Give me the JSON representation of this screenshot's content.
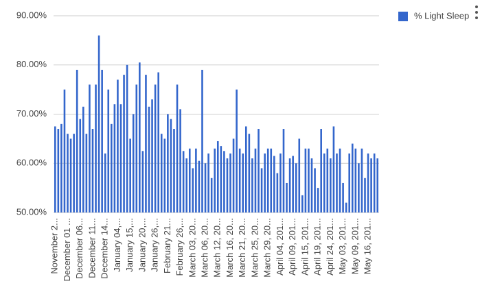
{
  "chart_data": {
    "type": "bar",
    "categories": [
      "November 2...",
      null,
      null,
      null,
      "December 01 ...",
      null,
      null,
      null,
      "December 06...",
      null,
      null,
      null,
      "December 11...",
      null,
      null,
      null,
      "December 14...",
      null,
      null,
      null,
      "January 04,...",
      null,
      null,
      null,
      "January 15,...",
      null,
      null,
      null,
      "January 20,...",
      null,
      null,
      null,
      "January 26,...",
      null,
      null,
      null,
      "February 21...",
      null,
      null,
      null,
      "February 26,...",
      null,
      null,
      null,
      "March 03, 20...",
      null,
      null,
      null,
      "March 06, 20...",
      null,
      null,
      null,
      "March 12, 20...",
      null,
      null,
      null,
      "March 16, 20...",
      null,
      null,
      null,
      "March 21, 20...",
      null,
      null,
      null,
      "March 25, 20...",
      null,
      null,
      null,
      "March 29, 20...",
      null,
      null,
      null,
      "April 04, 201...",
      null,
      null,
      null,
      "April 09, 201...",
      null,
      null,
      null,
      "April 15, 201...",
      null,
      null,
      null,
      "April 19, 201...",
      null,
      null,
      null,
      "April 24, 201...",
      null,
      null,
      null,
      "May 03, 201...",
      null,
      null,
      null,
      "May 09, 201...",
      null,
      null,
      null,
      "May 16, 201...",
      null,
      null,
      null
    ],
    "series": [
      {
        "name": "% Light Sleep",
        "color": "#3366cc",
        "values": [
          67.5,
          67,
          68,
          75,
          66,
          65,
          66,
          79,
          69,
          71.5,
          66,
          76,
          67,
          76,
          86,
          79,
          62,
          75,
          68,
          72,
          77,
          72,
          78,
          80,
          65,
          70,
          76,
          80.5,
          62.5,
          78,
          71.5,
          73,
          76,
          78.5,
          66,
          65,
          70,
          69,
          67,
          76,
          71,
          62.5,
          61,
          63,
          59,
          63,
          60.5,
          79,
          60,
          62,
          57,
          63,
          64.5,
          63.5,
          62.5,
          61,
          62,
          65,
          75,
          63,
          62,
          67.5,
          66,
          61,
          63,
          67,
          59,
          62,
          63,
          63,
          61.5,
          58,
          62,
          67,
          56,
          61,
          61.5,
          60,
          65,
          53.5,
          63,
          63,
          61,
          59,
          55,
          67,
          62,
          63,
          61,
          67.5,
          62,
          63,
          56,
          52,
          62,
          64,
          63,
          60,
          63,
          57,
          62,
          61,
          62,
          61
        ]
      }
    ],
    "ylim": [
      50,
      90
    ],
    "yticks": [
      {
        "value": 50,
        "label": "50.00%"
      },
      {
        "value": 60,
        "label": "60.00%"
      },
      {
        "value": 70,
        "label": "70.00%"
      },
      {
        "value": 80,
        "label": "80.00%"
      },
      {
        "value": 90,
        "label": "90.00%"
      }
    ],
    "grid": true,
    "legend": "top-right"
  }
}
